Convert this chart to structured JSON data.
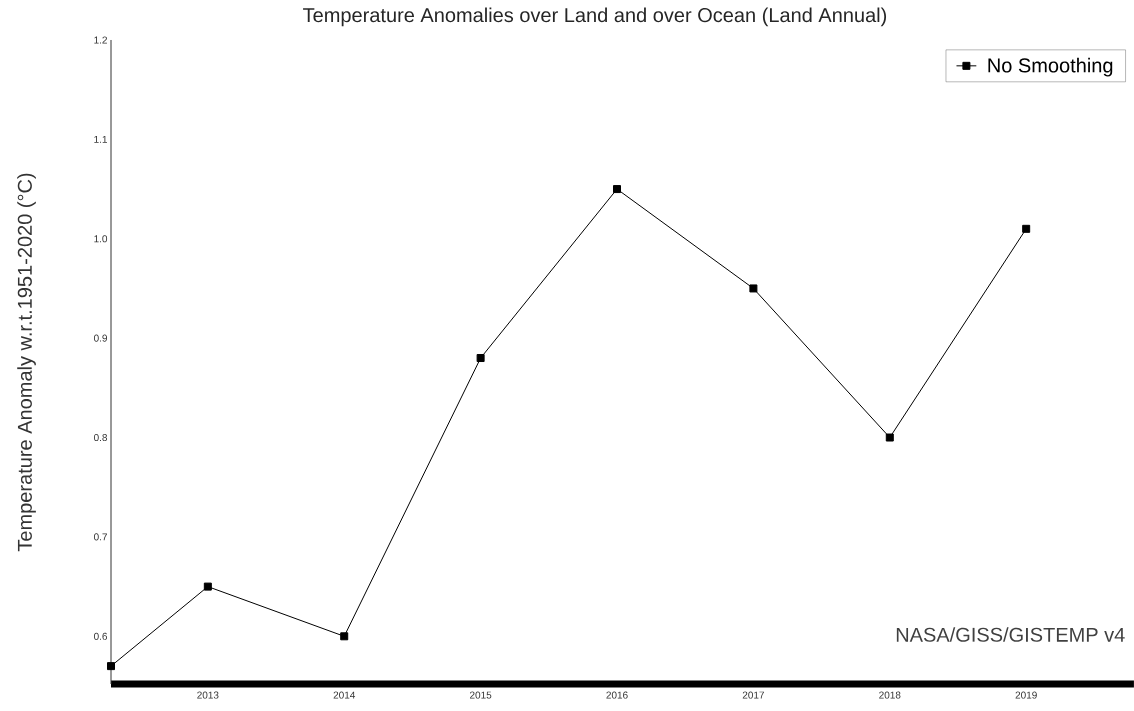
{
  "chart_data": {
    "type": "line",
    "title": "Temperature Anomalies over Land and over Ocean (Land Annual)",
    "ylabel": "Temperature Anomaly w.r.t.1951-2020 (°C)",
    "x": [
      2012.29,
      2013,
      2014,
      2015,
      2016,
      2017,
      2018,
      2019
    ],
    "series": [
      {
        "name": "No Smoothing",
        "color": "#000000",
        "values": [
          0.57,
          0.65,
          0.6,
          0.88,
          1.05,
          0.95,
          0.8,
          1.01
        ]
      }
    ],
    "xlim": [
      2012.29,
      2019.79
    ],
    "ylim": [
      0.552,
      1.2
    ],
    "xticks": [
      2013,
      2014,
      2015,
      2016,
      2017,
      2018,
      2019
    ],
    "yticks": [
      0.6,
      0.7,
      0.8,
      0.9,
      {
        "value": 1.0,
        "label": "1.0"
      },
      1.1,
      1.2
    ],
    "legend": "top right",
    "marker": "square",
    "line_style": "solid",
    "annotations": [
      "NASA/GISS/GISTEMP v4"
    ]
  }
}
